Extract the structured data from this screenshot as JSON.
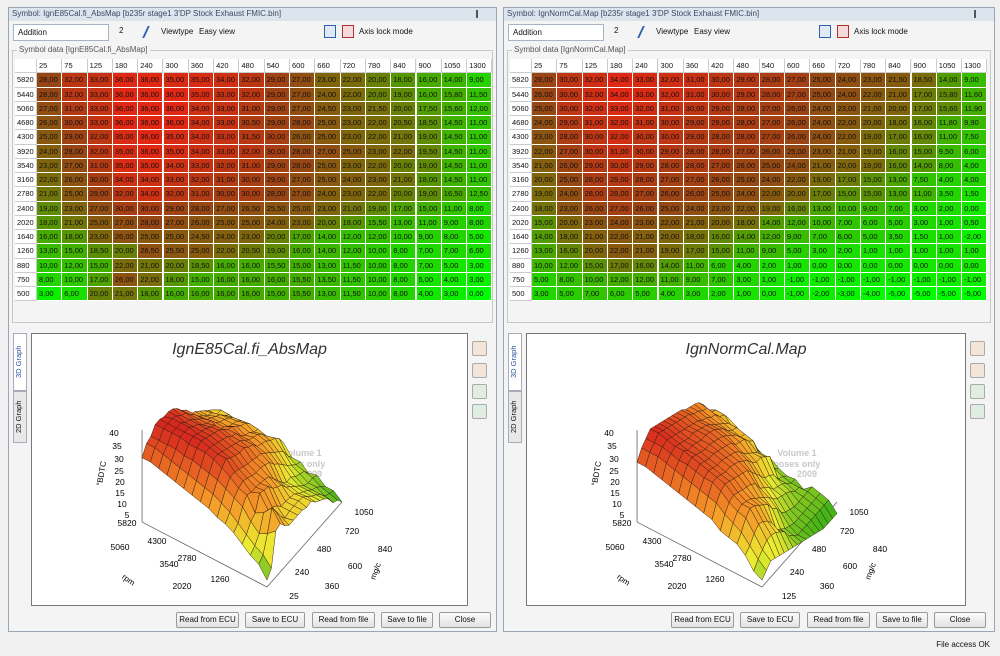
{
  "panels": [
    {
      "title_bar": "Symbol: IgnE85Cal.fi_AbsMap [b235r stage1 3'DP Stock Exhaust FMIC.bin]",
      "mode": "Addition",
      "step": "2",
      "viewtype_label": "Viewtype",
      "viewtype": "Easy view",
      "axis_lock": "Axis lock mode",
      "group_label": "Symbol data [IgnE85Cal.fi_AbsMap]",
      "table": {
        "columns": [
          "25",
          "75",
          "125",
          "180",
          "240",
          "300",
          "360",
          "420",
          "480",
          "540",
          "600",
          "660",
          "720",
          "780",
          "840",
          "900",
          "1050",
          "1300"
        ],
        "rows": [
          {
            "rpm": "5820",
            "values": [
              "28,00",
              "32,00",
              "33,00",
              "36,00",
              "36,00",
              "35,00",
              "35,00",
              "34,00",
              "32,00",
              "29,00",
              "27,00",
              "23,00",
              "22,00",
              "20,00",
              "18,00",
              "16,00",
              "14,00",
              "9,00"
            ]
          },
          {
            "rpm": "5440",
            "values": [
              "28,00",
              "32,00",
              "33,00",
              "36,00",
              "36,00",
              "36,00",
              "35,00",
              "33,00",
              "32,00",
              "29,00",
              "27,00",
              "24,00",
              "22,00",
              "20,00",
              "19,00",
              "16,00",
              "15,80",
              "11,50"
            ]
          },
          {
            "rpm": "5060",
            "values": [
              "27,00",
              "31,00",
              "33,00",
              "36,00",
              "36,00",
              "36,00",
              "34,00",
              "33,00",
              "31,00",
              "29,00",
              "27,00",
              "24,50",
              "23,00",
              "21,50",
              "20,00",
              "17,50",
              "15,60",
              "12,00"
            ]
          },
          {
            "rpm": "4680",
            "values": [
              "26,00",
              "30,00",
              "33,00",
              "36,00",
              "36,00",
              "36,00",
              "34,00",
              "33,00",
              "30,50",
              "29,00",
              "28,00",
              "25,00",
              "23,00",
              "22,00",
              "20,50",
              "18,50",
              "14,50",
              "11,00"
            ]
          },
          {
            "rpm": "4300",
            "values": [
              "25,00",
              "29,00",
              "32,00",
              "35,00",
              "36,00",
              "35,00",
              "34,00",
              "33,00",
              "31,50",
              "30,00",
              "26,00",
              "25,00",
              "23,00",
              "22,00",
              "21,00",
              "19,00",
              "14,50",
              "11,00"
            ]
          },
          {
            "rpm": "3920",
            "values": [
              "24,00",
              "28,00",
              "32,00",
              "35,00",
              "36,00",
              "35,00",
              "34,00",
              "33,00",
              "32,00",
              "30,00",
              "28,00",
              "27,00",
              "25,00",
              "23,00",
              "22,00",
              "19,50",
              "14,50",
              "11,00"
            ]
          },
          {
            "rpm": "3540",
            "values": [
              "23,00",
              "27,00",
              "31,00",
              "35,00",
              "35,00",
              "34,00",
              "33,00",
              "32,00",
              "31,00",
              "29,00",
              "28,00",
              "25,00",
              "23,00",
              "22,00",
              "20,00",
              "19,00",
              "14,50",
              "11,00"
            ]
          },
          {
            "rpm": "3160",
            "values": [
              "22,00",
              "26,00",
              "30,00",
              "34,00",
              "34,00",
              "33,00",
              "32,00",
              "31,00",
              "30,00",
              "29,00",
              "27,00",
              "25,00",
              "24,00",
              "23,00",
              "21,00",
              "18,00",
              "14,50",
              "11,00"
            ]
          },
          {
            "rpm": "2780",
            "values": [
              "21,00",
              "25,00",
              "29,00",
              "32,00",
              "34,00",
              "32,00",
              "31,00",
              "30,00",
              "30,00",
              "28,00",
              "27,00",
              "24,00",
              "23,00",
              "22,00",
              "20,00",
              "19,00",
              "16,50",
              "12,50"
            ]
          },
          {
            "rpm": "2400",
            "values": [
              "19,00",
              "23,00",
              "27,00",
              "30,00",
              "30,00",
              "29,00",
              "28,00",
              "27,00",
              "26,50",
              "25,50",
              "25,00",
              "23,00",
              "21,00",
              "19,00",
              "17,00",
              "15,00",
              "11,00",
              "8,00"
            ]
          },
          {
            "rpm": "2020",
            "values": [
              "18,00",
              "21,00",
              "25,00",
              "27,00",
              "28,00",
              "27,00",
              "26,00",
              "25,00",
              "25,00",
              "24,00",
              "23,00",
              "20,00",
              "18,00",
              "15,50",
              "13,00",
              "11,00",
              "9,00",
              "8,00"
            ]
          },
          {
            "rpm": "1640",
            "values": [
              "16,00",
              "18,00",
              "23,00",
              "26,00",
              "25,00",
              "25,00",
              "24,50",
              "24,00",
              "23,00",
              "20,00",
              "17,00",
              "14,00",
              "12,00",
              "12,00",
              "10,00",
              "9,00",
              "8,00",
              "5,00"
            ]
          },
          {
            "rpm": "1260",
            "values": [
              "13,00",
              "15,00",
              "18,50",
              "20,00",
              "26,50",
              "25,50",
              "25,00",
              "22,00",
              "20,50",
              "19,00",
              "16,00",
              "14,00",
              "12,00",
              "10,00",
              "8,00",
              "7,00",
              "7,00",
              "6,00"
            ]
          },
          {
            "rpm": "880",
            "values": [
              "10,00",
              "12,00",
              "15,00",
              "22,00",
              "21,00",
              "20,00",
              "18,50",
              "16,00",
              "16,00",
              "15,50",
              "15,00",
              "13,00",
              "11,50",
              "10,00",
              "8,00",
              "7,00",
              "5,00",
              "3,00"
            ]
          },
          {
            "rpm": "750",
            "values": [
              "8,00",
              "10,00",
              "17,00",
              "26,00",
              "22,00",
              "18,00",
              "15,00",
              "16,00",
              "16,00",
              "16,00",
              "15,50",
              "13,50",
              "11,50",
              "10,00",
              "8,00",
              "5,00",
              "4,00",
              "3,00"
            ]
          },
          {
            "rpm": "500",
            "values": [
              "3,00",
              "6,00",
              "20,00",
              "21,00",
              "18,00",
              "16,00",
              "16,00",
              "16,00",
              "16,00",
              "15,00",
              "15,50",
              "13,00",
              "11,50",
              "10,00",
              "8,00",
              "4,00",
              "3,00",
              "0,00"
            ]
          }
        ]
      },
      "graph": {
        "title": "IgnE85Cal.fi_AbsMap",
        "tabs": [
          "3D Graph",
          "2D Graph"
        ],
        "z_label": "°BDTC",
        "rpm_label": "rpm",
        "load_label": "mg/c",
        "z_ticks": [
          "40",
          "35",
          "30",
          "25",
          "20",
          "15",
          "10",
          "5"
        ],
        "rpm_ticks": [
          "5820",
          "5060",
          "4300",
          "3540",
          "2780",
          "2020",
          "1260"
        ],
        "load_ticks": [
          "1050",
          "720",
          "840",
          "480",
          "600",
          "240",
          "360",
          "25"
        ],
        "watermark": [
          "Volume 1",
          "rposes only",
          "2009"
        ]
      },
      "buttons": [
        "Read from ECU",
        "Save to ECU",
        "Read from file",
        "Save to file",
        "Close"
      ]
    },
    {
      "title_bar": "Symbol: IgnNormCal.Map [b235r stage1 3'DP Stock Exhaust FMIC.bin]",
      "mode": "Addition",
      "step": "2",
      "viewtype_label": "Viewtype",
      "viewtype": "Easy view",
      "axis_lock": "Axis lock mode",
      "group_label": "Symbol data [IgnNormCal.Map]",
      "table": {
        "columns": [
          "25",
          "75",
          "125",
          "180",
          "240",
          "300",
          "360",
          "420",
          "480",
          "540",
          "600",
          "660",
          "720",
          "780",
          "840",
          "900",
          "1050",
          "1300"
        ],
        "rows": [
          {
            "rpm": "5820",
            "values": [
              "26,00",
              "30,00",
              "32,00",
              "34,00",
              "33,00",
              "32,00",
              "31,00",
              "30,00",
              "29,00",
              "28,00",
              "27,00",
              "25,00",
              "24,00",
              "23,00",
              "21,50",
              "18,50",
              "14,00",
              "9,00"
            ]
          },
          {
            "rpm": "5440",
            "values": [
              "26,00",
              "30,00",
              "32,00",
              "34,00",
              "33,00",
              "32,00",
              "31,00",
              "30,00",
              "29,00",
              "28,00",
              "27,00",
              "25,00",
              "24,00",
              "22,00",
              "21,00",
              "17,00",
              "15,80",
              "11,60"
            ]
          },
          {
            "rpm": "5060",
            "values": [
              "25,00",
              "30,00",
              "32,00",
              "33,00",
              "32,00",
              "31,00",
              "30,00",
              "29,00",
              "28,00",
              "27,00",
              "26,00",
              "24,00",
              "23,00",
              "21,00",
              "20,00",
              "17,00",
              "15,60",
              "11,90"
            ]
          },
          {
            "rpm": "4680",
            "values": [
              "24,00",
              "29,00",
              "31,00",
              "32,00",
              "31,00",
              "30,00",
              "29,00",
              "29,00",
              "28,00",
              "27,00",
              "26,00",
              "24,00",
              "22,00",
              "20,00",
              "18,00",
              "16,00",
              "11,80",
              "9,90"
            ]
          },
          {
            "rpm": "4300",
            "values": [
              "23,00",
              "28,00",
              "30,00",
              "32,00",
              "30,00",
              "30,00",
              "29,00",
              "28,00",
              "28,00",
              "27,00",
              "26,00",
              "24,00",
              "22,00",
              "19,00",
              "17,00",
              "16,00",
              "11,00",
              "7,50"
            ]
          },
          {
            "rpm": "3920",
            "values": [
              "22,00",
              "27,00",
              "30,00",
              "31,00",
              "30,00",
              "29,00",
              "28,00",
              "28,00",
              "27,00",
              "26,00",
              "25,00",
              "23,00",
              "21,00",
              "19,00",
              "16,00",
              "15,00",
              "9,50",
              "6,00"
            ]
          },
          {
            "rpm": "3540",
            "values": [
              "21,00",
              "26,00",
              "29,00",
              "30,00",
              "29,00",
              "28,00",
              "28,00",
              "27,00",
              "26,00",
              "25,00",
              "24,00",
              "21,00",
              "20,00",
              "19,00",
              "16,00",
              "14,00",
              "8,00",
              "4,00"
            ]
          },
          {
            "rpm": "3160",
            "values": [
              "20,00",
              "25,00",
              "28,00",
              "29,00",
              "28,00",
              "27,00",
              "27,00",
              "26,00",
              "25,00",
              "24,00",
              "22,00",
              "19,00",
              "17,00",
              "15,00",
              "13,00",
              "7,50",
              "4,00",
              "4,00"
            ]
          },
          {
            "rpm": "2780",
            "values": [
              "19,00",
              "24,00",
              "28,00",
              "28,00",
              "27,00",
              "26,00",
              "26,00",
              "25,00",
              "24,00",
              "22,00",
              "20,00",
              "17,00",
              "15,00",
              "15,00",
              "13,00",
              "11,00",
              "3,50",
              "1,50"
            ]
          },
          {
            "rpm": "2400",
            "values": [
              "18,00",
              "23,00",
              "26,00",
              "27,00",
              "26,00",
              "25,00",
              "24,00",
              "23,00",
              "22,00",
              "19,00",
              "16,00",
              "13,00",
              "10,00",
              "9,00",
              "7,00",
              "3,00",
              "2,00",
              "0,00"
            ]
          },
          {
            "rpm": "2020",
            "values": [
              "15,00",
              "20,00",
              "23,00",
              "24,00",
              "23,00",
              "22,00",
              "21,00",
              "20,00",
              "18,00",
              "14,00",
              "12,00",
              "10,00",
              "7,00",
              "6,00",
              "5,00",
              "3,00",
              "1,00",
              "0,50"
            ]
          },
          {
            "rpm": "1640",
            "values": [
              "14,00",
              "18,00",
              "21,00",
              "22,00",
              "21,00",
              "20,00",
              "18,00",
              "16,00",
              "14,00",
              "12,00",
              "9,00",
              "7,00",
              "6,00",
              "5,00",
              "3,50",
              "1,50",
              "1,00",
              "-2,00"
            ]
          },
          {
            "rpm": "1260",
            "values": [
              "13,00",
              "16,00",
              "20,00",
              "22,00",
              "21,00",
              "19,00",
              "17,00",
              "15,00",
              "11,00",
              "9,00",
              "5,00",
              "3,00",
              "2,00",
              "1,00",
              "1,00",
              "1,00",
              "1,00",
              "1,00"
            ]
          },
          {
            "rpm": "880",
            "values": [
              "10,00",
              "12,00",
              "15,00",
              "17,00",
              "16,00",
              "14,00",
              "11,00",
              "6,00",
              "4,00",
              "2,00",
              "1,00",
              "0,00",
              "0,00",
              "0,00",
              "0,00",
              "0,00",
              "0,00",
              "0,00"
            ]
          },
          {
            "rpm": "750",
            "values": [
              "5,00",
              "8,00",
              "10,00",
              "12,00",
              "12,00",
              "11,00",
              "9,00",
              "7,00",
              "3,00",
              "1,00",
              "-1,00",
              "-1,00",
              "-1,00",
              "-1,00",
              "-1,00",
              "-1,00",
              "-1,00",
              "-1,00"
            ]
          },
          {
            "rpm": "500",
            "values": [
              "3,00",
              "5,00",
              "7,00",
              "6,00",
              "5,00",
              "4,00",
              "3,00",
              "2,00",
              "1,00",
              "0,00",
              "-1,00",
              "-2,00",
              "-3,00",
              "-4,00",
              "-5,00",
              "-5,00",
              "-5,00",
              "-5,00"
            ]
          }
        ]
      },
      "graph": {
        "title": "IgnNormCal.Map",
        "tabs": [
          "3D Graph",
          "2D Graph"
        ],
        "z_label": "°BDTC",
        "rpm_label": "rpm",
        "load_label": "mg/c",
        "z_ticks": [
          "40",
          "35",
          "30",
          "25",
          "20",
          "15",
          "10",
          "5"
        ],
        "rpm_ticks": [
          "5820",
          "5060",
          "4300",
          "3540",
          "2780",
          "2020",
          "1260"
        ],
        "load_ticks": [
          "1050",
          "720",
          "840",
          "480",
          "600",
          "240",
          "360",
          "125"
        ],
        "watermark": [
          "Volume 1",
          "rposes only",
          "2009"
        ]
      },
      "buttons": [
        "Read from ECU",
        "Save to ECU",
        "Read from file",
        "Save to file",
        "Close"
      ]
    }
  ],
  "status": "File access OK"
}
